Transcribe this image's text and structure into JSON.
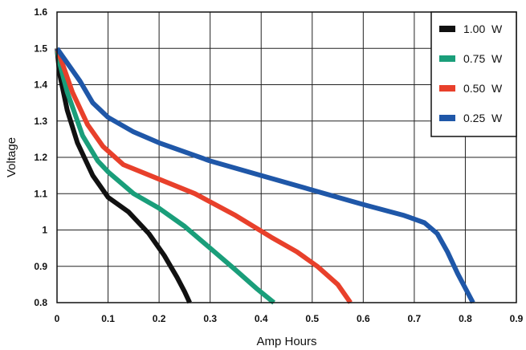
{
  "chart_data": {
    "type": "line",
    "title": "",
    "xlabel": "Amp Hours",
    "ylabel": "Voltage",
    "xlim": [
      0,
      0.9
    ],
    "ylim": [
      0.8,
      1.6
    ],
    "x_ticks": [
      "0",
      "0.1",
      "0.2",
      "0.3",
      "0.4",
      "0.5",
      "0.6",
      "0.7",
      "0.8",
      "0.9"
    ],
    "y_ticks": [
      "0.8",
      "0.9",
      "1",
      "1.1",
      "1.2",
      "1.3",
      "1.4",
      "1.5",
      "1.6"
    ],
    "grid": true,
    "legend_position": "top-right",
    "series": [
      {
        "name": "1.00  W",
        "color": "#111111",
        "points": [
          [
            0,
            1.5
          ],
          [
            0.005,
            1.43
          ],
          [
            0.02,
            1.33
          ],
          [
            0.04,
            1.24
          ],
          [
            0.07,
            1.15
          ],
          [
            0.1,
            1.09
          ],
          [
            0.14,
            1.05
          ],
          [
            0.18,
            0.99
          ],
          [
            0.21,
            0.93
          ],
          [
            0.235,
            0.87
          ],
          [
            0.25,
            0.83
          ],
          [
            0.26,
            0.8
          ]
        ]
      },
      {
        "name": "0.75  W",
        "color": "#1a9e7a",
        "points": [
          [
            0,
            1.5
          ],
          [
            0.005,
            1.46
          ],
          [
            0.02,
            1.38
          ],
          [
            0.05,
            1.26
          ],
          [
            0.08,
            1.19
          ],
          [
            0.1,
            1.16
          ],
          [
            0.15,
            1.1
          ],
          [
            0.2,
            1.06
          ],
          [
            0.25,
            1.01
          ],
          [
            0.3,
            0.95
          ],
          [
            0.35,
            0.89
          ],
          [
            0.39,
            0.84
          ],
          [
            0.425,
            0.8
          ]
        ]
      },
      {
        "name": "0.50  W",
        "color": "#e8402b",
        "points": [
          [
            0,
            1.5
          ],
          [
            0.01,
            1.46
          ],
          [
            0.03,
            1.38
          ],
          [
            0.06,
            1.29
          ],
          [
            0.09,
            1.23
          ],
          [
            0.13,
            1.18
          ],
          [
            0.2,
            1.14
          ],
          [
            0.27,
            1.1
          ],
          [
            0.35,
            1.04
          ],
          [
            0.42,
            0.98
          ],
          [
            0.47,
            0.94
          ],
          [
            0.51,
            0.9
          ],
          [
            0.55,
            0.85
          ],
          [
            0.575,
            0.8
          ]
        ]
      },
      {
        "name": "0.25  W",
        "color": "#1f57a8",
        "points": [
          [
            0,
            1.5
          ],
          [
            0.02,
            1.46
          ],
          [
            0.045,
            1.41
          ],
          [
            0.07,
            1.35
          ],
          [
            0.1,
            1.31
          ],
          [
            0.15,
            1.27
          ],
          [
            0.2,
            1.24
          ],
          [
            0.3,
            1.19
          ],
          [
            0.4,
            1.15
          ],
          [
            0.5,
            1.11
          ],
          [
            0.6,
            1.07
          ],
          [
            0.68,
            1.04
          ],
          [
            0.72,
            1.02
          ],
          [
            0.745,
            0.99
          ],
          [
            0.765,
            0.94
          ],
          [
            0.785,
            0.88
          ],
          [
            0.8,
            0.84
          ],
          [
            0.815,
            0.8
          ]
        ]
      }
    ]
  }
}
